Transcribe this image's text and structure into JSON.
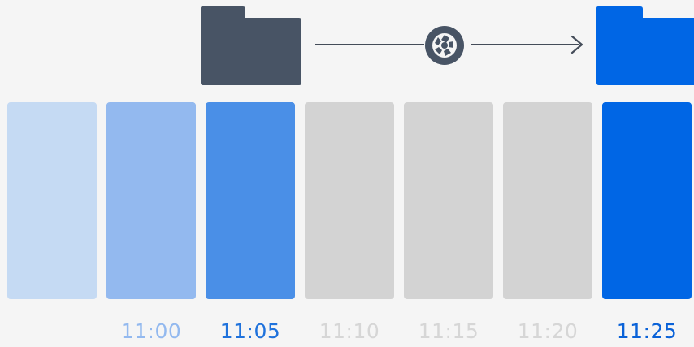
{
  "diagram": {
    "snapshots": [
      {
        "time": "",
        "state": "older",
        "color": "#c5daf3"
      },
      {
        "time": "11:00",
        "state": "older",
        "color": "#93b9ef"
      },
      {
        "time": "11:05",
        "state": "source",
        "color": "#4a8fe7"
      },
      {
        "time": "11:10",
        "state": "inactive",
        "color": "#d3d3d3"
      },
      {
        "time": "11:15",
        "state": "inactive",
        "color": "#d3d3d3"
      },
      {
        "time": "11:20",
        "state": "inactive",
        "color": "#d3d3d3"
      },
      {
        "time": "11:25",
        "state": "current",
        "color": "#0066e5"
      }
    ],
    "label_colors": {
      "older": "#93b9ef",
      "source": "#1f72dc",
      "inactive": "#d6d6d6",
      "current": "#0a62d8"
    },
    "source_folder": {
      "icon": "folder-icon",
      "color": "#485465"
    },
    "target_folder": {
      "icon": "folder-icon",
      "color": "#0066e5"
    },
    "snapshot_icon": {
      "icon": "camera-shutter-icon",
      "color": "#485465"
    },
    "arrow_color": "#444c59"
  }
}
